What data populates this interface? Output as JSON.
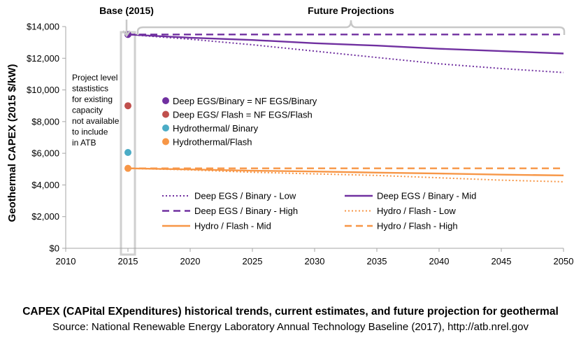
{
  "chart_data": {
    "type": "line",
    "ylabel": "Geothermal CAPEX (2015 $/kW)",
    "xlim": [
      2010,
      2050
    ],
    "ylim": [
      0,
      14000
    ],
    "x_ticks": [
      2010,
      2015,
      2020,
      2025,
      2030,
      2035,
      2040,
      2045,
      2050
    ],
    "y_ticks": [
      0,
      2000,
      4000,
      6000,
      8000,
      10000,
      12000,
      14000
    ],
    "y_tick_labels": [
      "$0",
      "$2,000",
      "$4,000",
      "$6,000",
      "$8,000",
      "$10,000",
      "$12,000",
      "$14,000"
    ],
    "grid": false,
    "annotations": {
      "base_label": "Base (2015)",
      "future_label": "Future Projections",
      "note_lines": [
        "Project level",
        "stastistics",
        "for existing",
        "capacity",
        "not available",
        "to include",
        "in ATB"
      ]
    },
    "points": [
      {
        "name": "Deep EGS/Binary = NF EGS/Binary",
        "x": 2015,
        "y": 13500,
        "color": "#7030a0"
      },
      {
        "name": "Deep EGS/ Flash = NF EGS/Flash",
        "x": 2015,
        "y": 9000,
        "color": "#c0504d"
      },
      {
        "name": "Hydrothermal/ Binary",
        "x": 2015,
        "y": 6050,
        "color": "#4bacc6"
      },
      {
        "name": "Hydrothermal/Flash",
        "x": 2015,
        "y": 5050,
        "color": "#f79646"
      }
    ],
    "series": [
      {
        "name": "Deep EGS / Binary - Low",
        "color": "#7030a0",
        "dash": "dot",
        "width": 2,
        "x": [
          2015,
          2020,
          2025,
          2030,
          2035,
          2040,
          2045,
          2050
        ],
        "y": [
          13500,
          13200,
          12850,
          12450,
          12050,
          11650,
          11350,
          11100
        ]
      },
      {
        "name": "Deep EGS / Binary - Mid",
        "color": "#7030a0",
        "dash": "solid",
        "width": 2.4,
        "x": [
          2015,
          2020,
          2025,
          2030,
          2035,
          2040,
          2045,
          2050
        ],
        "y": [
          13500,
          13300,
          13150,
          12950,
          12800,
          12600,
          12450,
          12300
        ]
      },
      {
        "name": "Deep EGS / Binary - High",
        "color": "#7030a0",
        "dash": "dash",
        "width": 2.4,
        "x": [
          2015,
          2050
        ],
        "y": [
          13500,
          13500
        ]
      },
      {
        "name": "Hydro / Flash - Low",
        "color": "#f79646",
        "dash": "dot",
        "width": 2,
        "x": [
          2015,
          2020,
          2025,
          2030,
          2035,
          2040,
          2045,
          2050
        ],
        "y": [
          5050,
          4950,
          4800,
          4700,
          4600,
          4450,
          4300,
          4200
        ]
      },
      {
        "name": "Hydro / Flash - Mid",
        "color": "#f79646",
        "dash": "solid",
        "width": 2.4,
        "x": [
          2015,
          2020,
          2025,
          2030,
          2035,
          2040,
          2045,
          2050
        ],
        "y": [
          5050,
          4980,
          4900,
          4850,
          4780,
          4720,
          4650,
          4600
        ]
      },
      {
        "name": "Hydro / Flash - High",
        "color": "#f79646",
        "dash": "dash",
        "width": 2.4,
        "x": [
          2015,
          2050
        ],
        "y": [
          5050,
          5050
        ]
      }
    ]
  },
  "caption": {
    "title": "CAPEX (CAPital EXpenditures) historical trends, current estimates, and future projection for geothermal",
    "source": "Source: National Renewable Energy Laboratory Annual Technology Baseline (2017), http://atb.nrel.gov"
  }
}
